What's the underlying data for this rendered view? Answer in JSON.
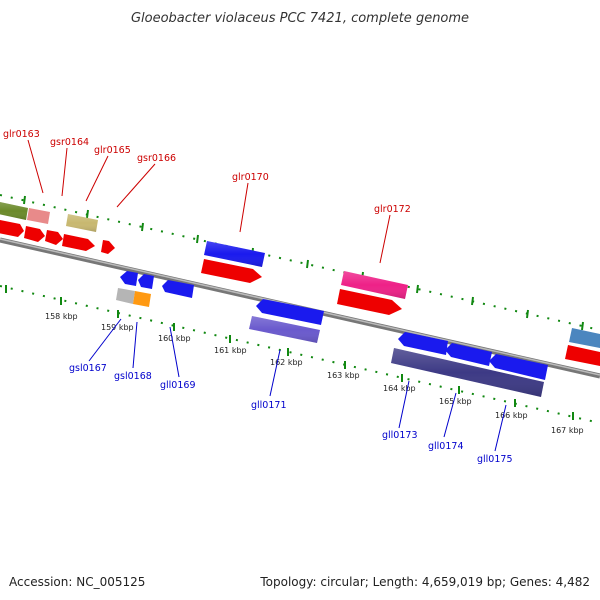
{
  "title": "Gloeobacter violaceus PCC 7421, complete genome",
  "footer": {
    "accession": "Accession: NC_005125",
    "topology": "Topology: circular; Length: 4,659,019 bp; Genes: 4,482"
  },
  "colors": {
    "forward_label": "#cc0000",
    "reverse_label": "#0000cc",
    "backbone": "#888888",
    "ticks": "#118811"
  },
  "tick_labels": [
    "158 kbp",
    "159 kbp",
    "160 kbp",
    "161 kbp",
    "162 kbp",
    "163 kbp",
    "164 kbp",
    "165 kbp",
    "166 kbp",
    "167 kbp"
  ],
  "forward_genes": [
    "glr0163",
    "gsr0164",
    "glr0165",
    "gsr0166",
    "glr0170",
    "glr0172"
  ],
  "reverse_genes": [
    "gsl0167",
    "gsl0168",
    "gll0169",
    "gll0171",
    "gll0173",
    "gll0174",
    "gll0175"
  ]
}
